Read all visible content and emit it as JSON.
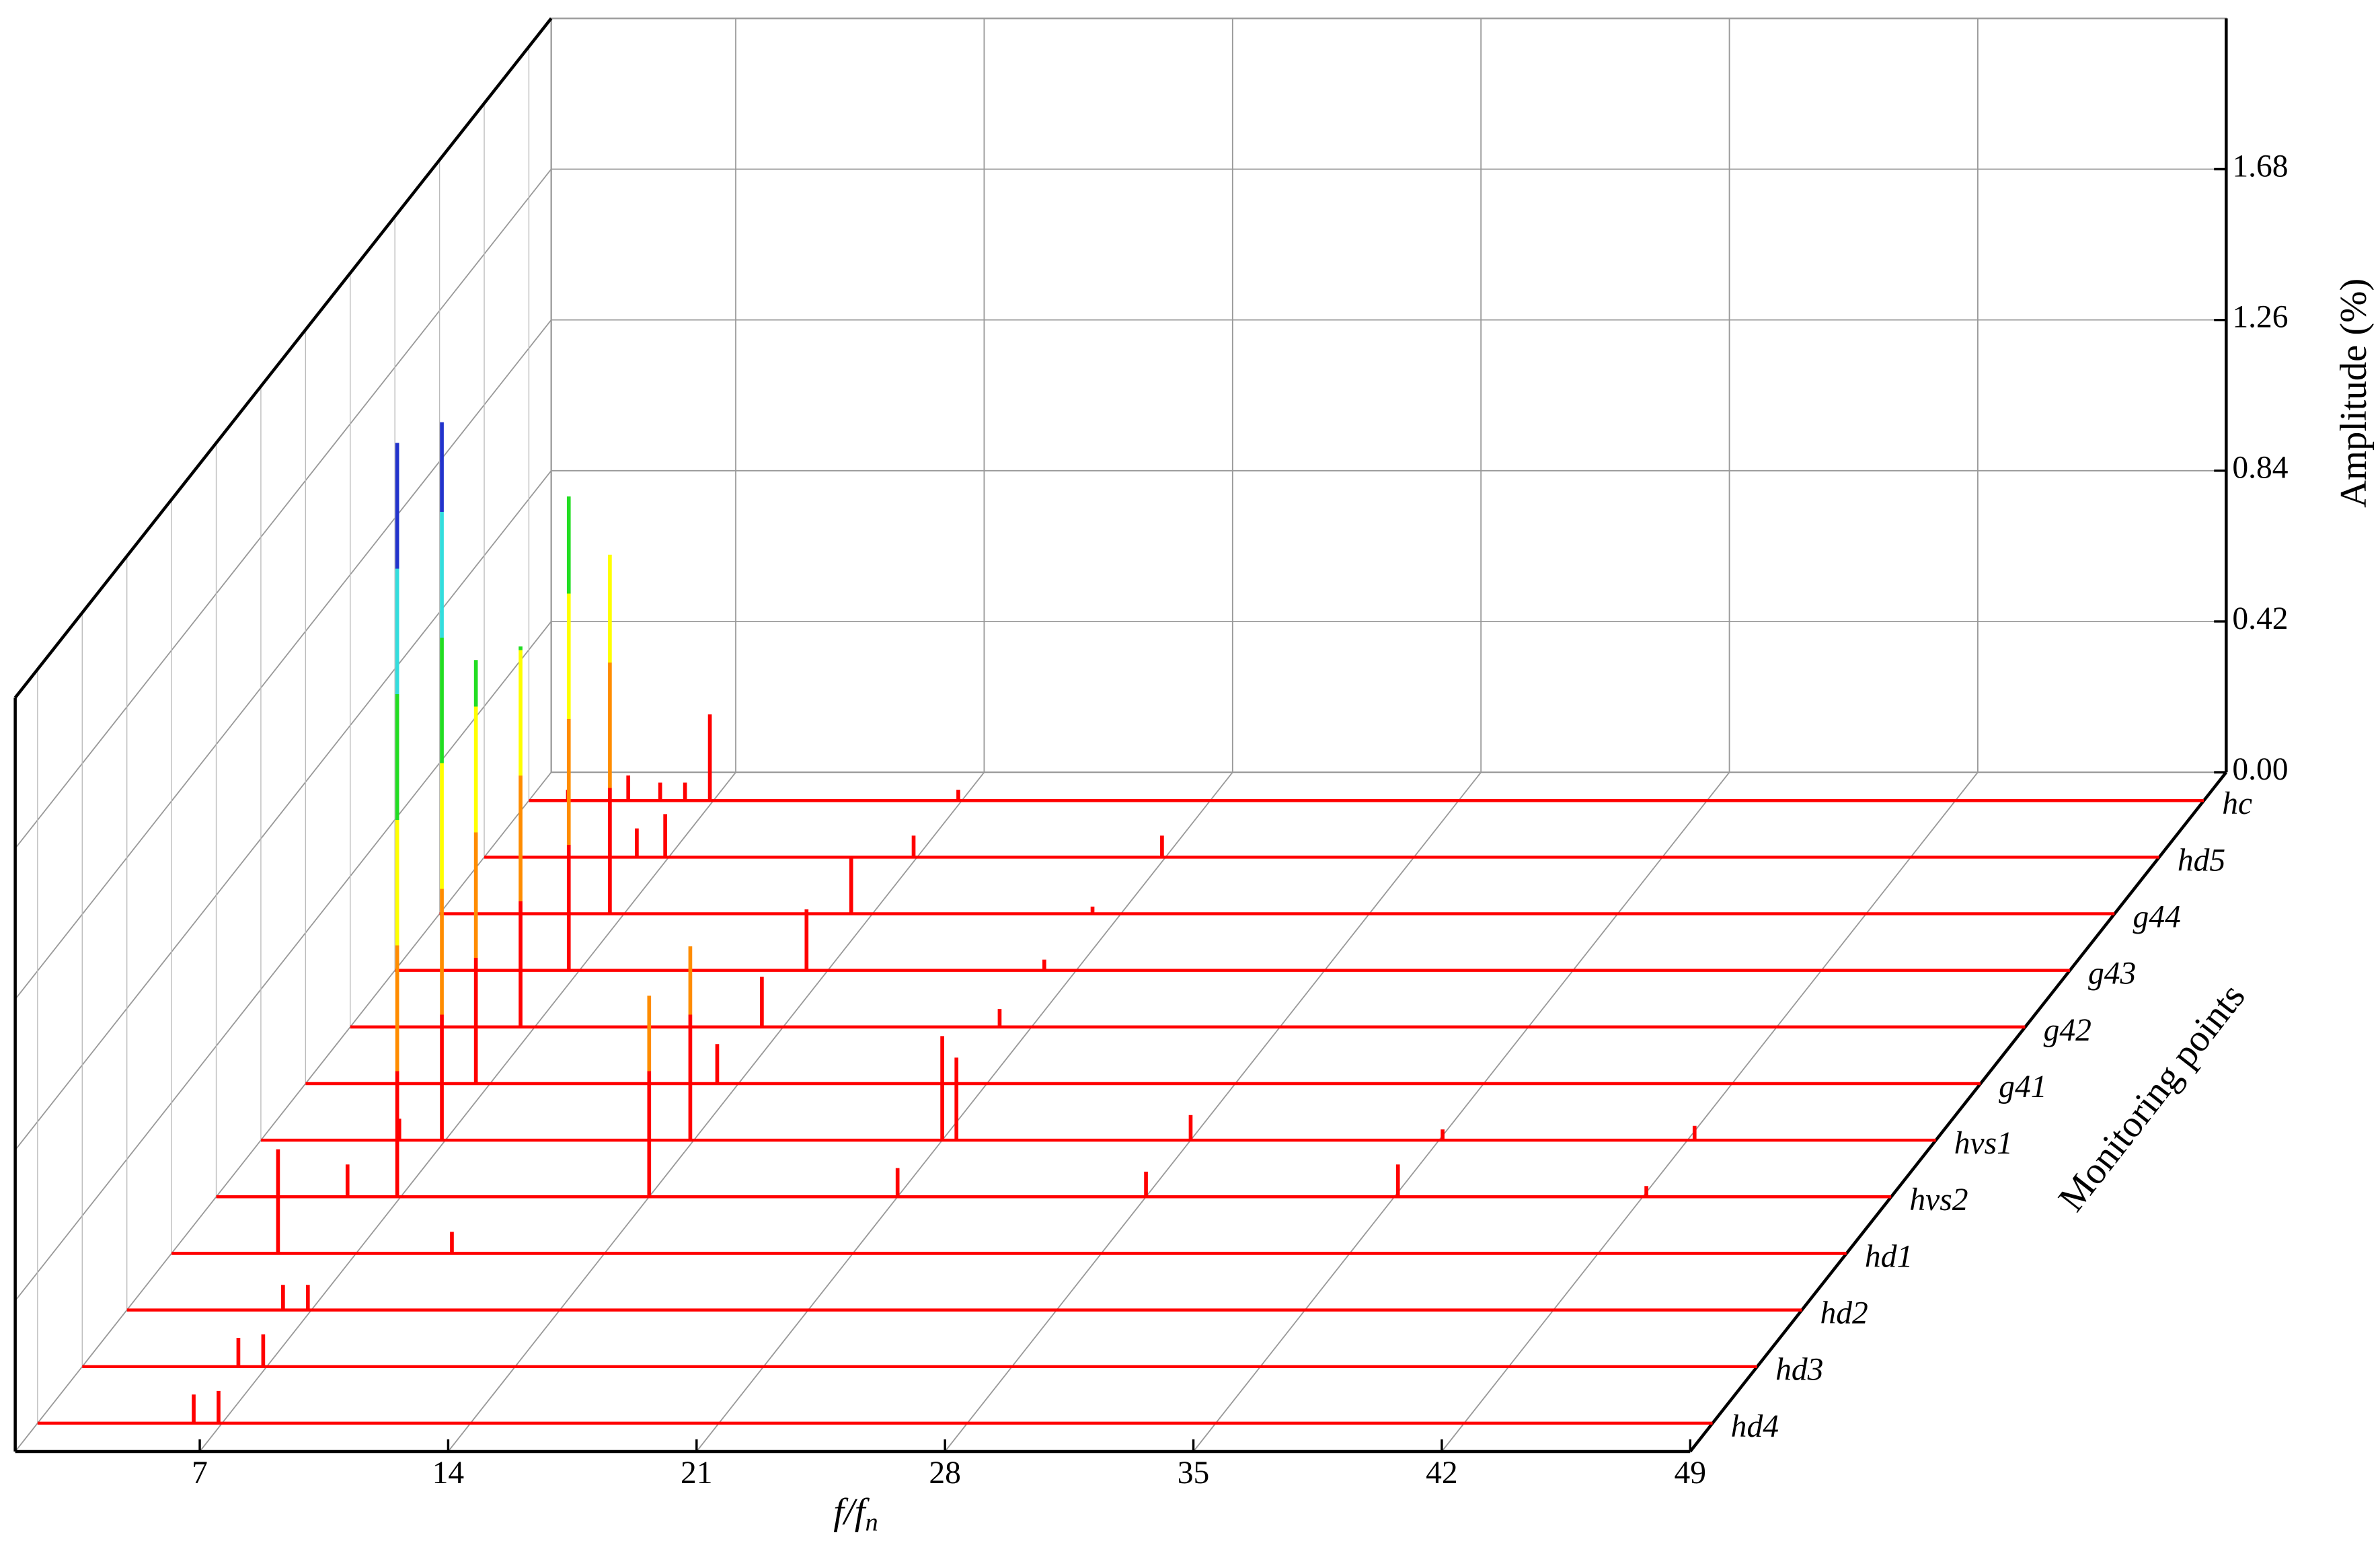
{
  "chart_data": {
    "type": "waterfall",
    "x_label": {
      "main": "f/f",
      "subscript": "n"
    },
    "ylabel": "Amplitude (%)",
    "zlabel": "Monitoring points",
    "xlim": [
      1.8,
      49
    ],
    "xticks": [
      7,
      14,
      21,
      28,
      35,
      42,
      49
    ],
    "ylim": [
      0,
      2.1
    ],
    "yticks": [
      {
        "value": 0,
        "label": "0.00"
      },
      0.42,
      0.84,
      1.26,
      1.68
    ],
    "grid": true,
    "color": "#ff0000",
    "colormap": [
      "#ff0000",
      "#ff8c00",
      "#ffff00",
      "#22dd22",
      "#33dddd",
      "#2233cc"
    ],
    "series": [
      {
        "name": "hc",
        "x": [
          2.9,
          4.6,
          5.5,
          6.2,
          6.9,
          13.9
        ],
        "values": [
          0.03,
          0.07,
          0.05,
          0.05,
          0.24,
          0.03
        ]
      },
      {
        "name": "hd5",
        "x": [
          6.1,
          6.9,
          13.9,
          20.9
        ],
        "values": [
          0.08,
          0.12,
          0.06,
          0.06
        ]
      },
      {
        "name": "g44",
        "x": [
          6.6,
          13.4,
          20.2
        ],
        "values": [
          1.0,
          0.16,
          0.02
        ]
      },
      {
        "name": "g43",
        "x": [
          6.7,
          13.4,
          20.1
        ],
        "values": [
          1.32,
          0.17,
          0.03
        ]
      },
      {
        "name": "g42",
        "x": [
          6.6,
          13.4,
          20.1
        ],
        "values": [
          1.06,
          0.14,
          0.05
        ]
      },
      {
        "name": "g41",
        "x": [
          6.6,
          13.4
        ],
        "values": [
          1.18,
          0.11
        ]
      },
      {
        "name": "hvs1",
        "x": [
          5.7,
          6.9,
          13.9,
          21.0,
          21.4,
          28.0,
          35.1,
          42.2
        ],
        "values": [
          0.06,
          2.0,
          0.54,
          0.29,
          0.23,
          0.07,
          0.03,
          0.04
        ]
      },
      {
        "name": "hvs2",
        "x": [
          5.5,
          6.9,
          14.0,
          21.0,
          28.0,
          35.1,
          42.1
        ],
        "values": [
          0.09,
          2.1,
          0.56,
          0.08,
          0.07,
          0.09,
          0.03
        ]
      },
      {
        "name": "hd1",
        "x": [
          4.8,
          9.7
        ],
        "values": [
          0.29,
          0.06
        ]
      },
      {
        "name": "hd2",
        "x": [
          6.2,
          6.9
        ],
        "values": [
          0.07,
          0.07
        ]
      },
      {
        "name": "hd3",
        "x": [
          6.2,
          6.9
        ],
        "values": [
          0.08,
          0.09
        ]
      },
      {
        "name": "hd4",
        "x": [
          6.2,
          6.9
        ],
        "values": [
          0.08,
          0.09
        ]
      }
    ]
  }
}
